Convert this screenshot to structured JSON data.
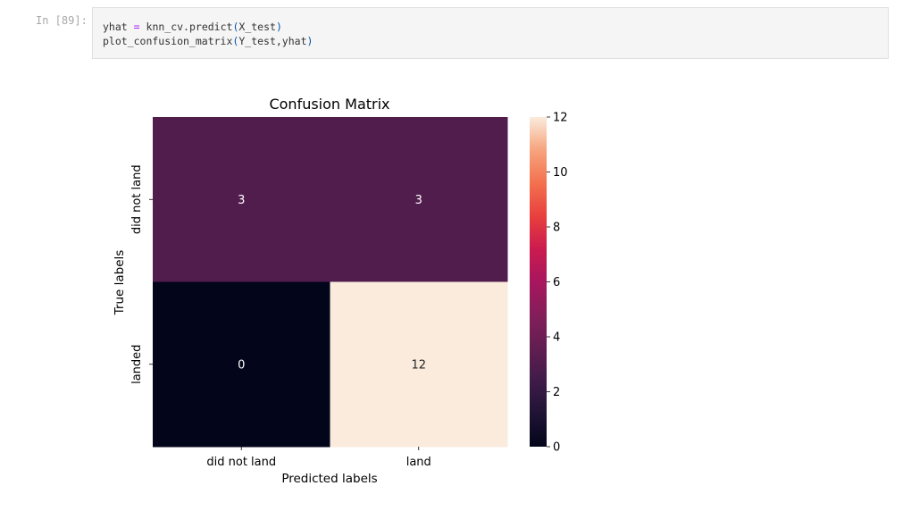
{
  "cell": {
    "prompt": "In [89]:",
    "code": {
      "line1": {
        "var": "yhat",
        "op": "=",
        "call": "knn_cv.predict",
        "open": "(",
        "arg": "X_test",
        "close": ")"
      },
      "line2": {
        "call": "plot_confusion_matrix",
        "open": "(",
        "arg": "Y_test,yhat",
        "close": ")"
      }
    }
  },
  "colors": {
    "cell_3": "#621e50",
    "cell_0": "#03051a",
    "cell_12": "#faebdd"
  },
  "chart_data": {
    "type": "heatmap",
    "title": "Confusion Matrix",
    "xlabel": "Predicted labels",
    "ylabel": "True labels",
    "x_categories": [
      "did not land",
      "land"
    ],
    "y_categories": [
      "did not land",
      "landed"
    ],
    "values": [
      [
        3,
        3
      ],
      [
        0,
        12
      ]
    ],
    "colorbar": {
      "min": 0,
      "max": 12,
      "ticks": [
        "0",
        "2",
        "4",
        "6",
        "8",
        "10",
        "12"
      ]
    },
    "colormap": "rocket"
  }
}
